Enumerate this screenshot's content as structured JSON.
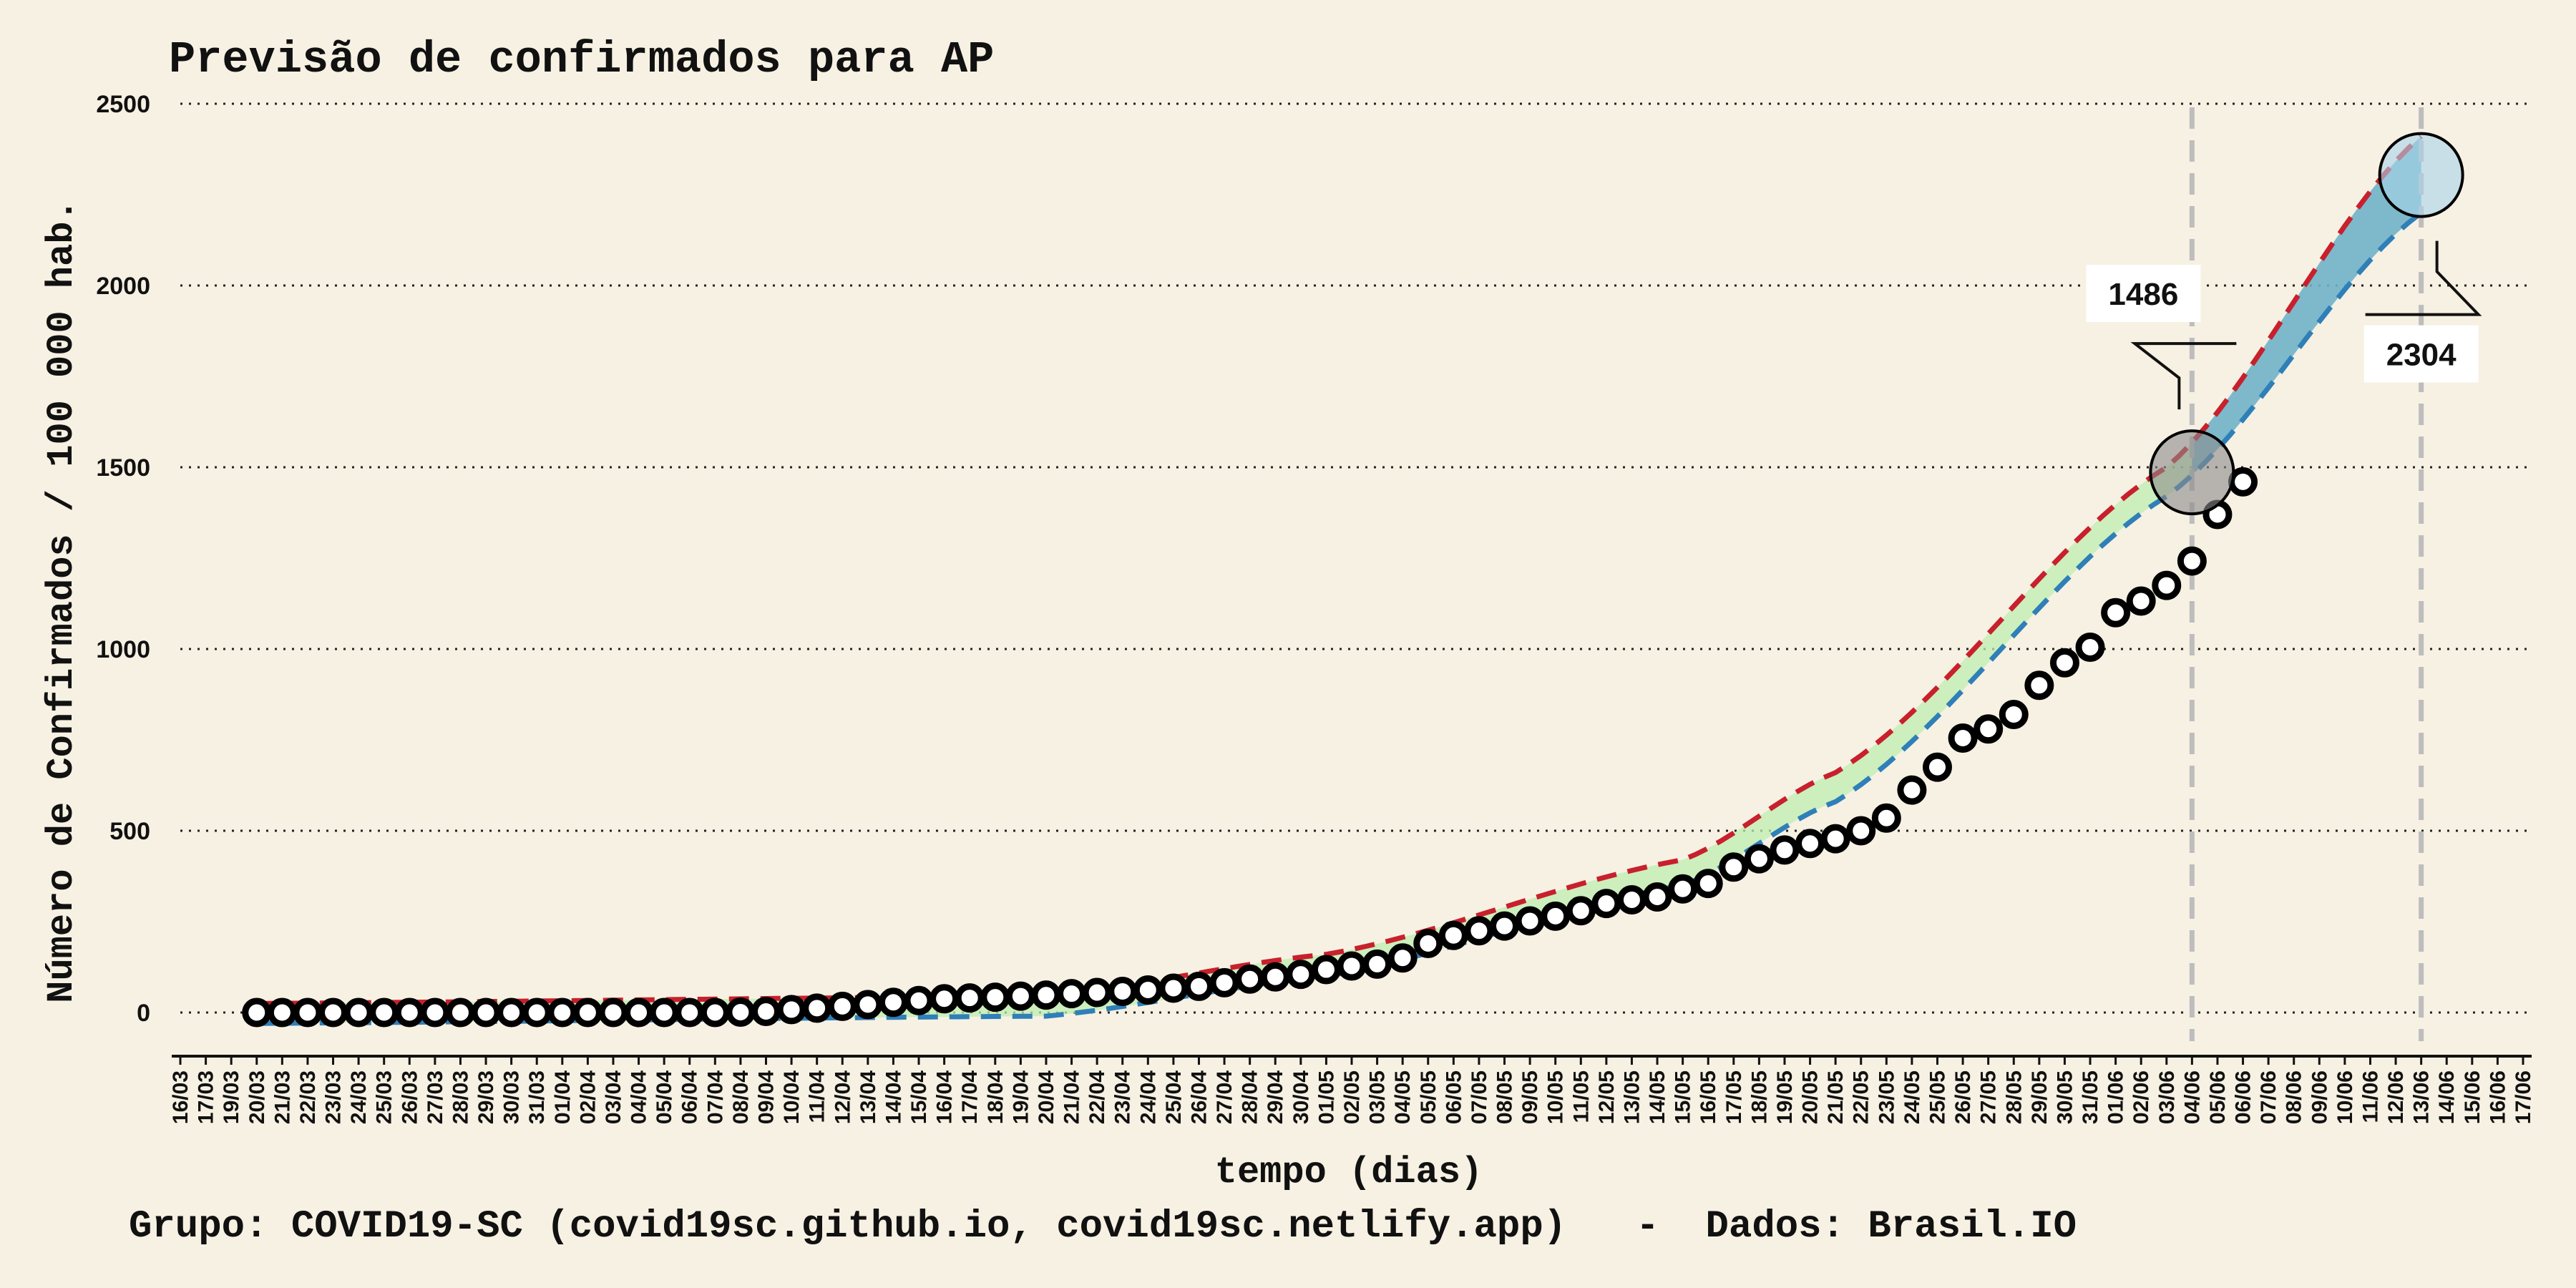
{
  "chart_data": {
    "type": "line",
    "title": "Previsão de confirmados para AP",
    "xlabel": "tempo (dias)",
    "ylabel": "Número de Confirmados / 100 000 hab.",
    "caption": "Grupo: COVID19-SC (covid19sc.github.io, covid19sc.netlify.app)   -  Dados: Brasil.IO",
    "ylim": [
      -80,
      2500
    ],
    "yticks": [
      0,
      500,
      1000,
      1500,
      2000,
      2500
    ],
    "grid": "horizontal dotted",
    "x_dates": [
      "16/03",
      "17/03",
      "19/03",
      "20/03",
      "21/03",
      "22/03",
      "23/03",
      "24/03",
      "25/03",
      "26/03",
      "27/03",
      "28/03",
      "29/03",
      "30/03",
      "31/03",
      "01/04",
      "02/04",
      "03/04",
      "04/04",
      "05/04",
      "06/04",
      "07/04",
      "08/04",
      "09/04",
      "10/04",
      "11/04",
      "12/04",
      "13/04",
      "14/04",
      "15/04",
      "16/04",
      "17/04",
      "18/04",
      "19/04",
      "20/04",
      "21/04",
      "22/04",
      "23/04",
      "24/04",
      "25/04",
      "26/04",
      "27/04",
      "28/04",
      "29/04",
      "30/04",
      "01/05",
      "02/05",
      "03/05",
      "04/05",
      "05/05",
      "06/05",
      "07/05",
      "08/05",
      "09/05",
      "10/05",
      "11/05",
      "12/05",
      "13/05",
      "14/05",
      "15/05",
      "16/05",
      "17/05",
      "18/05",
      "19/05",
      "20/05",
      "21/05",
      "22/05",
      "23/05",
      "24/05",
      "25/05",
      "26/05",
      "27/05",
      "28/05",
      "29/05",
      "30/05",
      "31/05",
      "01/06",
      "02/06",
      "03/06",
      "04/06",
      "05/06",
      "06/06",
      "07/06",
      "08/06",
      "09/06",
      "10/06",
      "11/06",
      "12/06",
      "13/06",
      "14/06",
      "15/06",
      "16/06",
      "17/06"
    ],
    "observed": {
      "start_date": "20/03",
      "values": [
        0,
        0,
        0,
        0,
        0,
        0,
        0,
        0,
        0,
        0,
        0,
        0,
        0,
        0,
        0,
        0,
        0,
        0,
        0,
        1,
        3,
        8,
        12,
        17,
        22,
        28,
        33,
        38,
        40,
        42,
        45,
        48,
        52,
        55,
        58,
        62,
        67,
        72,
        82,
        92,
        98,
        105,
        118,
        128,
        133,
        150,
        190,
        212,
        225,
        238,
        252,
        265,
        280,
        300,
        310,
        318,
        340,
        355,
        400,
        423,
        447,
        465,
        478,
        500,
        535,
        612,
        675,
        755,
        780,
        820,
        900,
        962,
        1005,
        1100,
        1132,
        1175,
        1242,
        1370,
        1460
      ],
      "marker": "open circle"
    },
    "series": [
      {
        "name": "upper",
        "style": "dashed",
        "color": "#c8202c",
        "points": [
          [
            "20/03",
            25
          ],
          [
            "20/04",
            45
          ],
          [
            "01/05",
            160
          ],
          [
            "15/05",
            420
          ],
          [
            "21/05",
            660
          ],
          [
            "03/06",
            1500
          ],
          [
            "13/06",
            2410
          ]
        ]
      },
      {
        "name": "lower",
        "style": "dashed",
        "color": "#2f7fb8",
        "points": [
          [
            "20/03",
            -30
          ],
          [
            "20/04",
            -10
          ],
          [
            "01/05",
            100
          ],
          [
            "15/05",
            350
          ],
          [
            "21/05",
            580
          ],
          [
            "03/06",
            1420
          ],
          [
            "13/06",
            2200
          ]
        ]
      }
    ],
    "bands": [
      {
        "from": "20/03",
        "to": "04/06",
        "color": "#bdeeb0"
      },
      {
        "from": "04/06",
        "to": "13/06",
        "color": "#6fb2c8"
      }
    ],
    "vlines": [
      "04/06",
      "13/06"
    ],
    "highlights": [
      {
        "date": "04/06",
        "value": 1486,
        "label": "1486",
        "label_side": "above-left",
        "fill": "#8a8a8a"
      },
      {
        "date": "13/06",
        "value": 2304,
        "label": "2304",
        "label_side": "below",
        "fill": "#a8d3ea"
      }
    ]
  }
}
